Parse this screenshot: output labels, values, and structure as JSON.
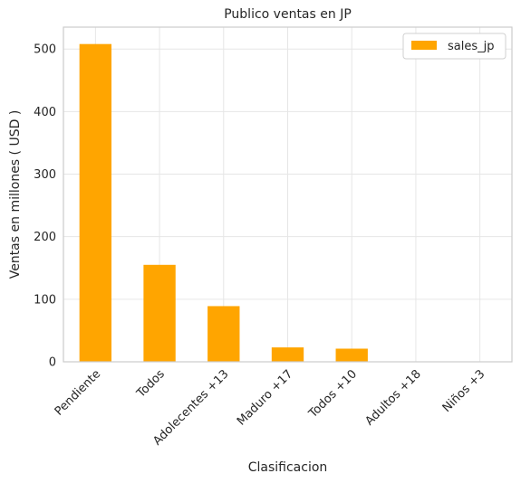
{
  "chart_data": {
    "type": "bar",
    "title": "Publico ventas en JP",
    "xlabel": "Clasificacion",
    "ylabel": "Ventas en millones ( USD )",
    "categories": [
      "Pendiente",
      "Todos",
      "Adolecentes +13",
      "Maduro +17",
      "Todos +10",
      "Adultos +18",
      "Niños +3"
    ],
    "series": [
      {
        "name": "sales_jp",
        "values": [
          508,
          155,
          89,
          23,
          21,
          0.5,
          0.3
        ],
        "color": "#ffa500"
      }
    ],
    "ylim": [
      0,
      535
    ],
    "yticks": [
      0,
      100,
      200,
      300,
      400,
      500
    ],
    "grid": true,
    "legend_position": "top-right"
  }
}
